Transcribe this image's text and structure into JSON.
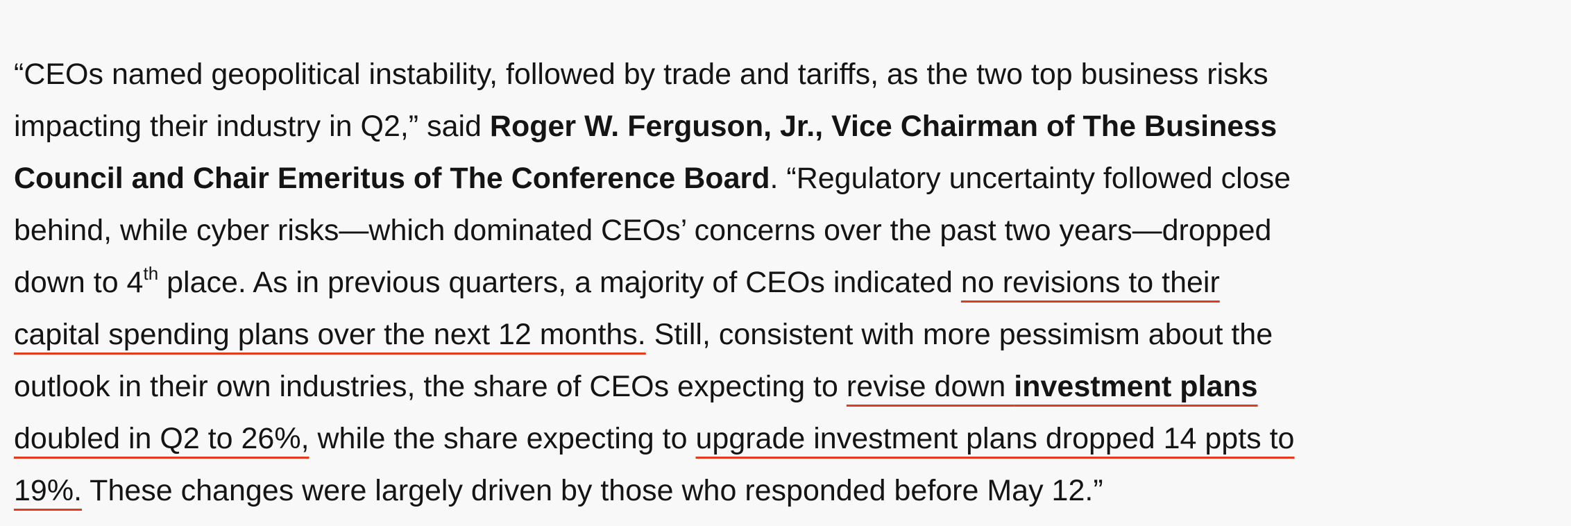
{
  "paragraph": {
    "lines": [
      [
        {
          "text": "“CEOs named geopolitical instability, followed by trade and tariffs, as the two top business risks"
        }
      ],
      [
        {
          "text": "impacting their industry in Q2,” said "
        },
        {
          "text": "Roger W. Ferguson, Jr., Vice Chairman of The Business",
          "bold": true
        }
      ],
      [
        {
          "text": "Council and Chair Emeritus of The Conference Board",
          "bold": true
        },
        {
          "text": ". “Regulatory uncertainty followed close"
        }
      ],
      [
        {
          "text": "behind, while cyber risks—which dominated CEOs’ concerns over the past two years—dropped"
        }
      ],
      [
        {
          "text": "down to 4"
        },
        {
          "text": "th",
          "superscript": true
        },
        {
          "text": " place. As in previous quarters, a majority of CEOs indicated "
        },
        {
          "text": "no revisions to their",
          "underline": true
        }
      ],
      [
        {
          "text": "capital spending plans over the next 12 months.",
          "underline": true
        },
        {
          "text": " Still, consistent with more pessimism about the"
        }
      ],
      [
        {
          "text": "outlook in their own industries, the share of CEOs expecting to "
        },
        {
          "text": "revise down ",
          "underline": true
        },
        {
          "text": "investment plans",
          "underline": true,
          "bold": true
        }
      ],
      [
        {
          "text": "doubled in Q2 to 26%,",
          "underline": true
        },
        {
          "text": " while the share expecting to "
        },
        {
          "text": "upgrade investment plans dropped 14 ppts to",
          "underline": true
        }
      ],
      [
        {
          "text": "19%.",
          "underline": true
        },
        {
          "text": " These changes were largely driven by those who responded before May 12.”"
        }
      ]
    ]
  }
}
